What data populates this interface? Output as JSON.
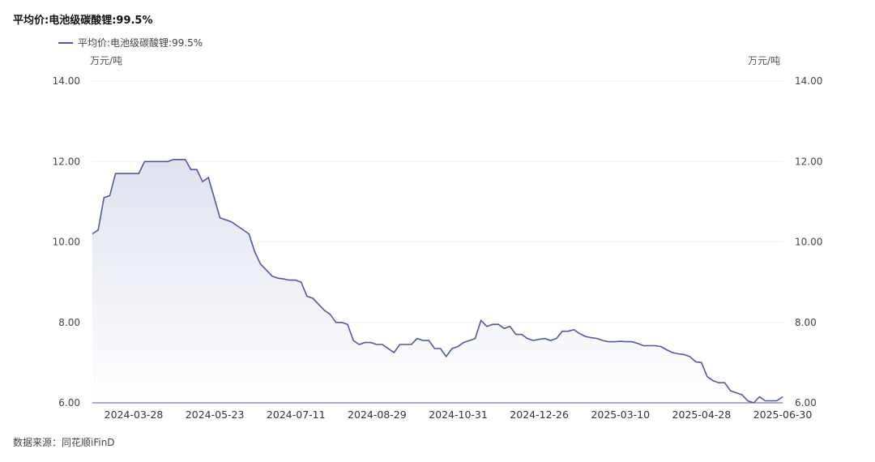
{
  "title": "平均价:电池级碳酸锂:99.5%",
  "legend": {
    "series_name": "平均价:电池级碳酸锂:99.5%"
  },
  "unit_left": "万元/吨",
  "unit_right": "万元/吨",
  "source": "数据来源：同花顺iFinD",
  "colors": {
    "line": "#4e5a9c",
    "fill_top": "#dfe2ef",
    "fill_bottom": "#ffffff",
    "grid": "#f0f0f0",
    "axis": "#4e5a9c"
  },
  "chart_data": {
    "type": "area",
    "title": "平均价:电池级碳酸锂:99.5%",
    "ylabel": "万元/吨",
    "ylim": [
      6.0,
      14.0
    ],
    "yticks": [
      "6.00",
      "8.00",
      "10.00",
      "12.00",
      "14.00"
    ],
    "xticks": [
      "2024-03-28",
      "2024-05-23",
      "2024-07-11",
      "2024-08-29",
      "2024-10-31",
      "2024-12-26",
      "2025-03-10",
      "2025-04-28",
      "2025-06-30"
    ],
    "grid": true,
    "legend_position": "top-left",
    "series": [
      {
        "name": "平均价:电池级碳酸锂:99.5%",
        "values": [
          10.2,
          10.3,
          11.1,
          11.15,
          11.7,
          11.7,
          11.7,
          11.7,
          11.7,
          12.0,
          12.0,
          12.0,
          12.0,
          12.0,
          12.05,
          12.05,
          12.05,
          11.8,
          11.8,
          11.5,
          11.6,
          11.1,
          10.6,
          10.55,
          10.5,
          10.4,
          10.3,
          10.2,
          9.75,
          9.45,
          9.3,
          9.15,
          9.1,
          9.08,
          9.05,
          9.05,
          9.0,
          8.65,
          8.6,
          8.45,
          8.3,
          8.2,
          8.0,
          8.0,
          7.95,
          7.55,
          7.45,
          7.5,
          7.5,
          7.45,
          7.45,
          7.35,
          7.25,
          7.45,
          7.45,
          7.45,
          7.6,
          7.55,
          7.55,
          7.35,
          7.35,
          7.15,
          7.35,
          7.4,
          7.5,
          7.55,
          7.6,
          8.05,
          7.9,
          7.95,
          7.95,
          7.85,
          7.9,
          7.7,
          7.7,
          7.6,
          7.55,
          7.58,
          7.6,
          7.55,
          7.6,
          7.78,
          7.78,
          7.82,
          7.72,
          7.65,
          7.62,
          7.6,
          7.55,
          7.52,
          7.52,
          7.53,
          7.52,
          7.52,
          7.48,
          7.42,
          7.42,
          7.42,
          7.4,
          7.32,
          7.25,
          7.22,
          7.2,
          7.15,
          7.02,
          7.0,
          6.65,
          6.55,
          6.5,
          6.5,
          6.3,
          6.25,
          6.2,
          6.05,
          6.0,
          6.15,
          6.05,
          6.05,
          6.05,
          6.15
        ]
      }
    ]
  }
}
